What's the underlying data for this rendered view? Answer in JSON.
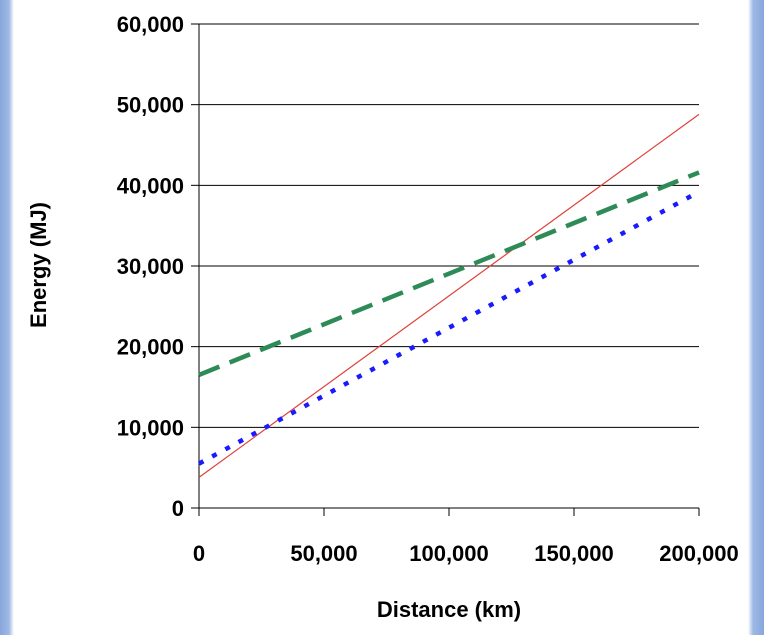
{
  "chart_data": {
    "type": "line",
    "title": "",
    "xlabel": "Distance (km)",
    "ylabel": "Energy (MJ)",
    "xlim": [
      0,
      200000
    ],
    "ylim": [
      0,
      60000
    ],
    "x_ticks": [
      0,
      50000,
      100000,
      150000,
      200000
    ],
    "x_tick_labels": [
      "0",
      "50,000",
      "100,000",
      "150,000",
      "200,000"
    ],
    "y_ticks": [
      0,
      10000,
      20000,
      30000,
      40000,
      50000,
      60000
    ],
    "y_tick_labels": [
      "0",
      "10,000",
      "20,000",
      "30,000",
      "40,000",
      "50,000",
      "60,000"
    ],
    "grid": "horizontal",
    "legend": "none",
    "series": [
      {
        "color": "#e0403a",
        "style": "solid",
        "x": [
          0,
          200000
        ],
        "y": [
          3800,
          48800
        ]
      },
      {
        "color": "#2e8b57",
        "style": "long-dash",
        "x": [
          0,
          200000
        ],
        "y": [
          16500,
          41600
        ]
      },
      {
        "color": "#1a1aff",
        "style": "dotted",
        "x": [
          0,
          200000
        ],
        "y": [
          5500,
          39200
        ]
      }
    ]
  }
}
